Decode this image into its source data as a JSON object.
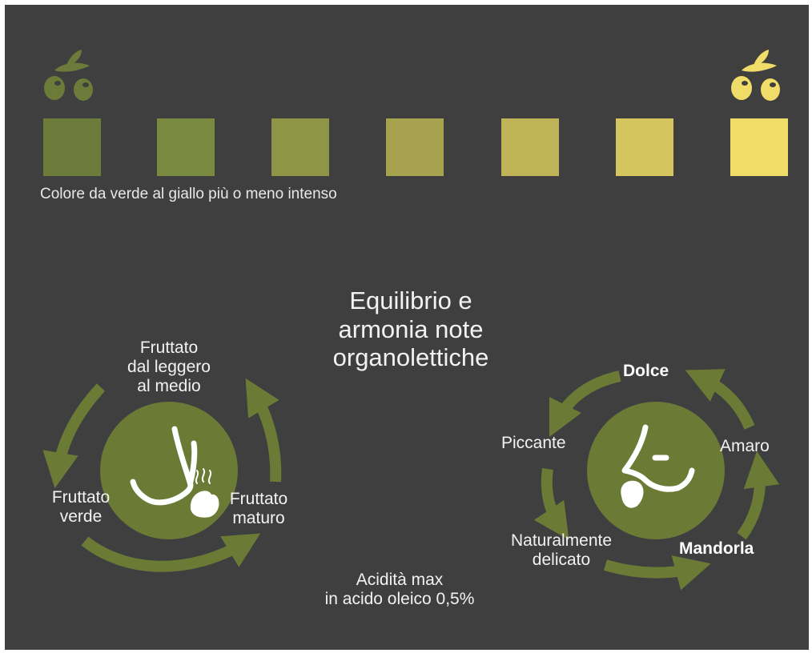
{
  "palette": {
    "caption": "Colore da verde al giallo più o meno intenso",
    "swatches": [
      "#6c7a3a",
      "#7a8a40",
      "#8e9646",
      "#a7a24e",
      "#bfb457",
      "#d5c55e",
      "#f0dc68"
    ]
  },
  "colors": {
    "background": "#3f3f3f",
    "green": "#6b7b36",
    "olive_dark": "#6c7a3a",
    "olive_light": "#f0dc68",
    "text": "#f2f2f2"
  },
  "icons": {
    "olive_left": "olive-branch-icon",
    "olive_right": "olive-branch-icon",
    "smell": "nose-smelling-icon",
    "taste": "face-tasting-icon"
  },
  "center_title": [
    "Equilibrio e",
    "armonia note",
    "organolettiche"
  ],
  "acidity": [
    "Acidità max",
    "in acido oleico 0,5%"
  ],
  "smell_cycle": {
    "top": [
      "Fruttato",
      "dal leggero",
      "al medio"
    ],
    "left": [
      "Fruttato",
      "verde"
    ],
    "right": [
      "Fruttato",
      "maturo"
    ]
  },
  "taste_cycle": {
    "top": "Dolce",
    "left": "Piccante",
    "right": "Amaro",
    "bottom_left": [
      "Naturalmente",
      "delicato"
    ],
    "bottom_right": "Mandorla"
  }
}
